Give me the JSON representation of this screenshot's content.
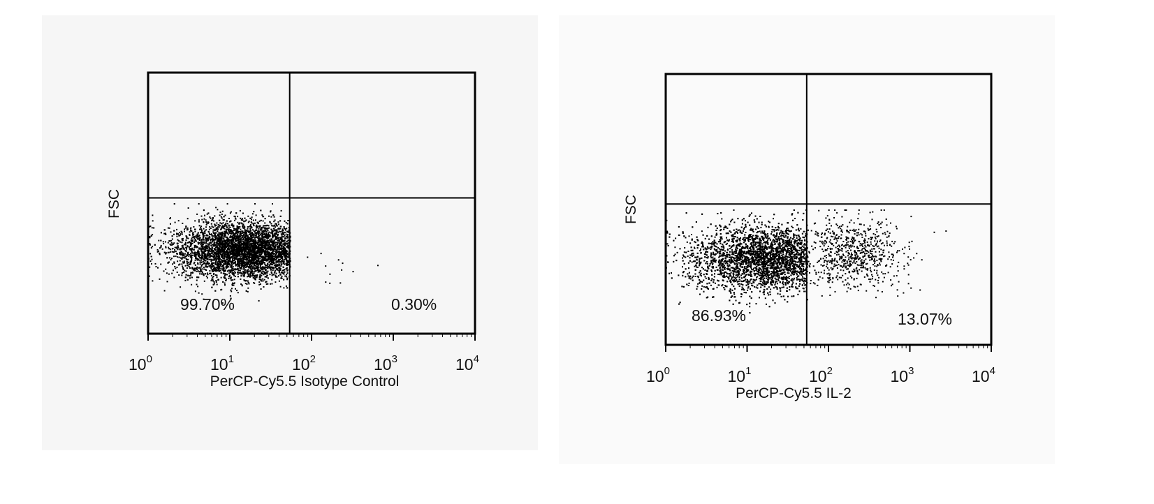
{
  "chart_data": [
    {
      "type": "scatter",
      "xlabel": "PerCP-Cy5.5 Isotype Control",
      "ylabel": "FSC",
      "x_scale": "log",
      "xlim": [
        1,
        10000
      ],
      "x_ticks": [
        {
          "base": "10",
          "exp": "0"
        },
        {
          "base": "10",
          "exp": "1"
        },
        {
          "base": "10",
          "exp": "2"
        },
        {
          "base": "10",
          "exp": "3"
        },
        {
          "base": "10",
          "exp": "4"
        }
      ],
      "ylim": [
        0,
        1
      ],
      "grid": false,
      "quadrant_gate": {
        "x": 54,
        "y": 0.52
      },
      "quadrant_labels": {
        "lower_left": "99.70%",
        "lower_right": "0.30%"
      },
      "populations": [
        {
          "center_x": 14,
          "sd_log_x": 0.42,
          "center_y": 0.32,
          "sd_y": 0.055,
          "share": 0.997,
          "x_max": 54
        },
        {
          "center_x": 150,
          "sd_log_x": 0.3,
          "center_y": 0.27,
          "sd_y": 0.05,
          "share": 0.003
        }
      ]
    },
    {
      "type": "scatter",
      "xlabel": "PerCP-Cy5.5 IL-2",
      "ylabel": "FSC",
      "x_scale": "log",
      "xlim": [
        1,
        10000
      ],
      "x_ticks": [
        {
          "base": "10",
          "exp": "0"
        },
        {
          "base": "10",
          "exp": "1"
        },
        {
          "base": "10",
          "exp": "2"
        },
        {
          "base": "10",
          "exp": "3"
        },
        {
          "base": "10",
          "exp": "4"
        }
      ],
      "ylim": [
        0,
        1
      ],
      "grid": false,
      "quadrant_gate": {
        "x": 54,
        "y": 0.52
      },
      "quadrant_labels": {
        "lower_left": "86.93%",
        "lower_right": "13.07%"
      },
      "populations": [
        {
          "center_x": 15,
          "sd_log_x": 0.45,
          "center_y": 0.32,
          "sd_y": 0.06,
          "share": 0.8693,
          "x_max": 54
        },
        {
          "center_x": 200,
          "sd_log_x": 0.3,
          "center_y": 0.34,
          "sd_y": 0.065,
          "share": 0.1307,
          "x_min": 54
        }
      ]
    }
  ],
  "colors": {
    "panel_left_bg": "#f6f6f6",
    "panel_right_bg": "#fafafa",
    "ink": "#000000"
  }
}
